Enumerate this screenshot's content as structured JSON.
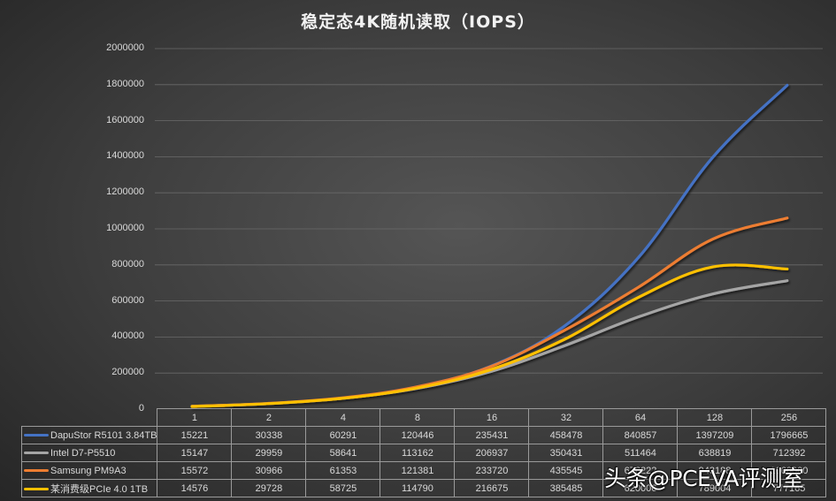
{
  "title": "稳定态4K随机读取（IOPS）",
  "watermark": "头条@PCEVA评测室",
  "y_ticks": [
    "2000000",
    "1800000",
    "1600000",
    "1400000",
    "1200000",
    "1000000",
    "800000",
    "600000",
    "400000",
    "200000",
    "0"
  ],
  "table": {
    "headers": [
      "1",
      "2",
      "4",
      "8",
      "16",
      "32",
      "64",
      "128",
      "256"
    ],
    "rows": [
      {
        "name": "DapuStor R5101 3.84TB",
        "color": "#4472C4",
        "values": [
          "15221",
          "30338",
          "60291",
          "120446",
          "235431",
          "458478",
          "840857",
          "1397209",
          "1796665"
        ]
      },
      {
        "name": "Intel D7-P5510",
        "color": "#A5A5A5",
        "values": [
          "15147",
          "29959",
          "58641",
          "113162",
          "206937",
          "350431",
          "511464",
          "638819",
          "712392"
        ]
      },
      {
        "name": "Samsung PM9A3",
        "color": "#ED7D31",
        "values": [
          "15572",
          "30966",
          "61353",
          "121381",
          "233720",
          "435545",
          "676222",
          "943188",
          "1060000"
        ]
      },
      {
        "name": "某消费级PCIe 4.0 1TB",
        "color": "#FFC000",
        "values": [
          "14576",
          "29728",
          "58725",
          "114790",
          "216675",
          "385485",
          "620006",
          "789004",
          "777165"
        ]
      }
    ]
  },
  "chart_data": {
    "type": "line",
    "title": "稳定态4K随机读取（IOPS）",
    "xlabel": "",
    "ylabel": "",
    "categories": [
      "1",
      "2",
      "4",
      "8",
      "16",
      "32",
      "64",
      "128",
      "256"
    ],
    "ylim": [
      0,
      2000000
    ],
    "yticks": [
      0,
      200000,
      400000,
      600000,
      800000,
      1000000,
      1200000,
      1400000,
      1600000,
      1800000,
      2000000
    ],
    "grid": true,
    "legend_position": "data-table-bottom",
    "smooth": true,
    "series": [
      {
        "name": "DapuStor R5101 3.84TB",
        "color": "#4472C4",
        "values": [
          15221,
          30338,
          60291,
          120446,
          235431,
          458478,
          840857,
          1397209,
          1796665
        ]
      },
      {
        "name": "Intel D7-P5510",
        "color": "#A5A5A5",
        "values": [
          15147,
          29959,
          58641,
          113162,
          206937,
          350431,
          511464,
          638819,
          712392
        ]
      },
      {
        "name": "Samsung PM9A3",
        "color": "#ED7D31",
        "values": [
          15572,
          30966,
          61353,
          121381,
          233720,
          435545,
          676222,
          943188,
          1060000
        ]
      },
      {
        "name": "某消费级PCIe 4.0 1TB",
        "color": "#FFC000",
        "values": [
          14576,
          29728,
          58725,
          114790,
          216675,
          385485,
          620006,
          789004,
          777165
        ]
      }
    ]
  }
}
